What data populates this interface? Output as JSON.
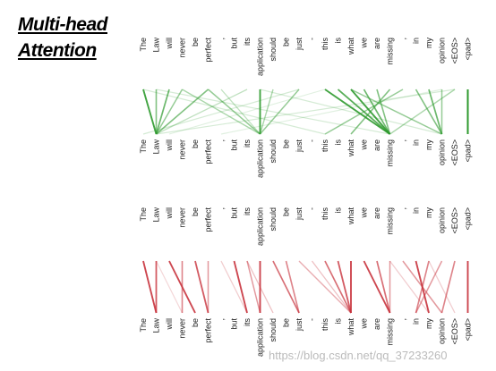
{
  "title": [
    "Multi-head",
    "Attention"
  ],
  "tokens": [
    "The",
    "Law",
    "will",
    "never",
    "be",
    "perfect",
    ",",
    "but",
    "its",
    "application",
    "should",
    "be",
    "just",
    "-",
    "this",
    "is",
    "what",
    "we",
    "are",
    "missing",
    ",",
    "in",
    "my",
    "opinion",
    "<EOS>",
    "<pad>"
  ],
  "heads": [
    {
      "color": "#2e9a2e",
      "edges": [
        {
          "from": 0,
          "to": 1,
          "weight": 0.9
        },
        {
          "from": 1,
          "to": 1,
          "weight": 0.6
        },
        {
          "from": 2,
          "to": 1,
          "weight": 0.7
        },
        {
          "from": 3,
          "to": 1,
          "weight": 0.5
        },
        {
          "from": 5,
          "to": 1,
          "weight": 0.6
        },
        {
          "from": 8,
          "to": 1,
          "weight": 0.3
        },
        {
          "from": 3,
          "to": 9,
          "weight": 0.4
        },
        {
          "from": 5,
          "to": 9,
          "weight": 0.5
        },
        {
          "from": 9,
          "to": 9,
          "weight": 0.9
        },
        {
          "from": 12,
          "to": 9,
          "weight": 0.5
        },
        {
          "from": 10,
          "to": 9,
          "weight": 0.4
        },
        {
          "from": 6,
          "to": 9,
          "weight": 0.3
        },
        {
          "from": 14,
          "to": 19,
          "weight": 0.9
        },
        {
          "from": 15,
          "to": 19,
          "weight": 0.8
        },
        {
          "from": 16,
          "to": 19,
          "weight": 0.9
        },
        {
          "from": 17,
          "to": 19,
          "weight": 0.7
        },
        {
          "from": 18,
          "to": 19,
          "weight": 0.6
        },
        {
          "from": 19,
          "to": 16,
          "weight": 0.6
        },
        {
          "from": 20,
          "to": 14,
          "weight": 0.5
        },
        {
          "from": 22,
          "to": 23,
          "weight": 0.7
        },
        {
          "from": 21,
          "to": 23,
          "weight": 0.6
        },
        {
          "from": 23,
          "to": 23,
          "weight": 0.5
        },
        {
          "from": 16,
          "to": 23,
          "weight": 0.5
        },
        {
          "from": 24,
          "to": 19,
          "weight": 0.4
        },
        {
          "from": 25,
          "to": 25,
          "weight": 1.0
        },
        {
          "from": 0,
          "to": 14,
          "weight": 0.2
        },
        {
          "from": 1,
          "to": 19,
          "weight": 0.2
        },
        {
          "from": 9,
          "to": 23,
          "weight": 0.2
        },
        {
          "from": 12,
          "to": 0,
          "weight": 0.2
        },
        {
          "from": 24,
          "to": 1,
          "weight": 0.2
        },
        {
          "from": 23,
          "to": 6,
          "weight": 0.15
        },
        {
          "from": 14,
          "to": 2,
          "weight": 0.15
        }
      ]
    },
    {
      "color": "#c8323c",
      "edges": [
        {
          "from": 0,
          "to": 1,
          "weight": 0.9
        },
        {
          "from": 1,
          "to": 1,
          "weight": 0.8
        },
        {
          "from": 2,
          "to": 4,
          "weight": 0.9
        },
        {
          "from": 3,
          "to": 3,
          "weight": 0.6
        },
        {
          "from": 4,
          "to": 5,
          "weight": 0.8
        },
        {
          "from": 5,
          "to": 5,
          "weight": 0.5
        },
        {
          "from": 7,
          "to": 8,
          "weight": 0.9
        },
        {
          "from": 8,
          "to": 9,
          "weight": 0.5
        },
        {
          "from": 9,
          "to": 9,
          "weight": 0.9
        },
        {
          "from": 10,
          "to": 12,
          "weight": 0.7
        },
        {
          "from": 11,
          "to": 12,
          "weight": 0.6
        },
        {
          "from": 12,
          "to": 16,
          "weight": 0.4
        },
        {
          "from": 14,
          "to": 16,
          "weight": 0.7
        },
        {
          "from": 15,
          "to": 16,
          "weight": 0.8
        },
        {
          "from": 16,
          "to": 16,
          "weight": 0.9
        },
        {
          "from": 17,
          "to": 19,
          "weight": 0.9
        },
        {
          "from": 18,
          "to": 19,
          "weight": 0.7
        },
        {
          "from": 19,
          "to": 19,
          "weight": 0.5
        },
        {
          "from": 21,
          "to": 22,
          "weight": 0.9
        },
        {
          "from": 22,
          "to": 21,
          "weight": 0.6
        },
        {
          "from": 23,
          "to": 21,
          "weight": 0.5
        },
        {
          "from": 20,
          "to": 23,
          "weight": 0.5
        },
        {
          "from": 24,
          "to": 23,
          "weight": 0.6
        },
        {
          "from": 25,
          "to": 25,
          "weight": 0.9
        },
        {
          "from": 8,
          "to": 10,
          "weight": 0.3
        },
        {
          "from": 6,
          "to": 8,
          "weight": 0.25
        },
        {
          "from": 13,
          "to": 16,
          "weight": 0.3
        },
        {
          "from": 22,
          "to": 24,
          "weight": 0.25
        },
        {
          "from": 1,
          "to": 3,
          "weight": 0.2
        },
        {
          "from": 19,
          "to": 22,
          "weight": 0.25
        }
      ]
    }
  ],
  "watermark": "https://blog.csdn.net/qq_37233260"
}
